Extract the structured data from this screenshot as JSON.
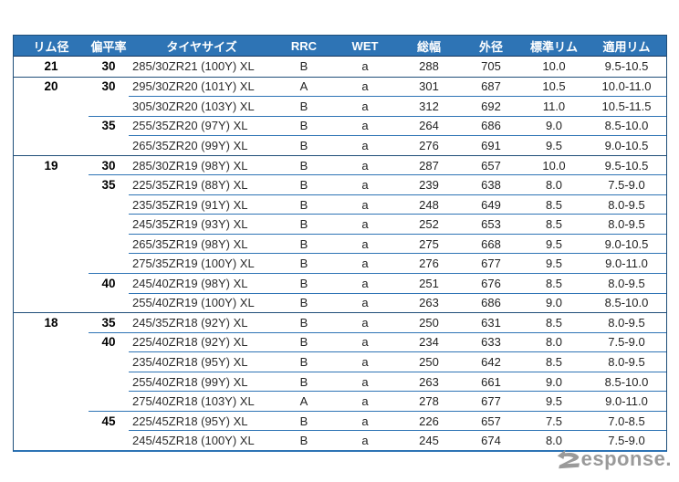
{
  "colors": {
    "header_bg": "#2e74b5",
    "group_line": "#1f4e79",
    "sub_line": "#2e74b5",
    "text": "#222222",
    "watermark_gray": "#9a9a9a"
  },
  "watermark": {
    "label": "Response.",
    "text_tail": "esponse."
  },
  "chart_data": {
    "type": "table",
    "columns": [
      "リム径",
      "偏平率",
      "タイヤサイズ",
      "RRC",
      "WET",
      "総幅",
      "外径",
      "標準リム",
      "適用リム"
    ],
    "rows": [
      {
        "rim": "21",
        "ar": "30",
        "size": "285/30ZR21 (100Y) XL",
        "rrc": "B",
        "wet": "a",
        "width": "288",
        "od": "705",
        "std_rim": "10.0",
        "app_rim": "9.5-10.5",
        "line": "none"
      },
      {
        "rim": "20",
        "ar": "30",
        "size": "295/30ZR20 (101Y) XL",
        "rrc": "A",
        "wet": "a",
        "width": "301",
        "od": "687",
        "std_rim": "10.5",
        "app_rim": "10.0-11.0",
        "line": "group"
      },
      {
        "rim": "",
        "ar": "",
        "size": "305/30ZR20 (103Y) XL",
        "rrc": "B",
        "wet": "a",
        "width": "312",
        "od": "692",
        "std_rim": "11.0",
        "app_rim": "10.5-11.5",
        "line": "size"
      },
      {
        "rim": "",
        "ar": "35",
        "size": "255/35ZR20 (97Y) XL",
        "rrc": "B",
        "wet": "a",
        "width": "264",
        "od": "686",
        "std_rim": "9.0",
        "app_rim": "8.5-10.0",
        "line": "ar"
      },
      {
        "rim": "",
        "ar": "",
        "size": "265/35ZR20 (99Y) XL",
        "rrc": "B",
        "wet": "a",
        "width": "276",
        "od": "691",
        "std_rim": "9.5",
        "app_rim": "9.0-10.5",
        "line": "size"
      },
      {
        "rim": "19",
        "ar": "30",
        "size": "285/30ZR19 (98Y) XL",
        "rrc": "B",
        "wet": "a",
        "width": "287",
        "od": "657",
        "std_rim": "10.0",
        "app_rim": "9.5-10.5",
        "line": "group"
      },
      {
        "rim": "",
        "ar": "35",
        "size": "225/35ZR19 (88Y) XL",
        "rrc": "B",
        "wet": "a",
        "width": "239",
        "od": "638",
        "std_rim": "8.0",
        "app_rim": "7.5-9.0",
        "line": "ar"
      },
      {
        "rim": "",
        "ar": "",
        "size": "235/35ZR19 (91Y) XL",
        "rrc": "B",
        "wet": "a",
        "width": "248",
        "od": "649",
        "std_rim": "8.5",
        "app_rim": "8.0-9.5",
        "line": "size"
      },
      {
        "rim": "",
        "ar": "",
        "size": "245/35ZR19 (93Y) XL",
        "rrc": "B",
        "wet": "a",
        "width": "252",
        "od": "653",
        "std_rim": "8.5",
        "app_rim": "8.0-9.5",
        "line": "size"
      },
      {
        "rim": "",
        "ar": "",
        "size": "265/35ZR19 (98Y) XL",
        "rrc": "B",
        "wet": "a",
        "width": "275",
        "od": "668",
        "std_rim": "9.5",
        "app_rim": "9.0-10.5",
        "line": "size"
      },
      {
        "rim": "",
        "ar": "",
        "size": "275/35ZR19 (100Y) XL",
        "rrc": "B",
        "wet": "a",
        "width": "276",
        "od": "677",
        "std_rim": "9.5",
        "app_rim": "9.0-11.0",
        "line": "size"
      },
      {
        "rim": "",
        "ar": "40",
        "size": "245/40ZR19 (98Y) XL",
        "rrc": "B",
        "wet": "a",
        "width": "251",
        "od": "676",
        "std_rim": "8.5",
        "app_rim": "8.0-9.5",
        "line": "ar"
      },
      {
        "rim": "",
        "ar": "",
        "size": "255/40ZR19 (100Y) XL",
        "rrc": "B",
        "wet": "a",
        "width": "263",
        "od": "686",
        "std_rim": "9.0",
        "app_rim": "8.5-10.0",
        "line": "size"
      },
      {
        "rim": "18",
        "ar": "35",
        "size": "245/35ZR18 (92Y) XL",
        "rrc": "B",
        "wet": "a",
        "width": "250",
        "od": "631",
        "std_rim": "8.5",
        "app_rim": "8.0-9.5",
        "line": "group"
      },
      {
        "rim": "",
        "ar": "40",
        "size": "225/40ZR18 (92Y) XL",
        "rrc": "B",
        "wet": "a",
        "width": "234",
        "od": "633",
        "std_rim": "8.0",
        "app_rim": "7.5-9.0",
        "line": "ar"
      },
      {
        "rim": "",
        "ar": "",
        "size": "235/40ZR18 (95Y) XL",
        "rrc": "B",
        "wet": "a",
        "width": "250",
        "od": "642",
        "std_rim": "8.5",
        "app_rim": "8.0-9.5",
        "line": "size"
      },
      {
        "rim": "",
        "ar": "",
        "size": "255/40ZR18 (99Y) XL",
        "rrc": "B",
        "wet": "a",
        "width": "263",
        "od": "661",
        "std_rim": "9.0",
        "app_rim": "8.5-10.0",
        "line": "size"
      },
      {
        "rim": "",
        "ar": "",
        "size": "275/40ZR18 (103Y) XL",
        "rrc": "A",
        "wet": "a",
        "width": "278",
        "od": "677",
        "std_rim": "9.5",
        "app_rim": "9.0-11.0",
        "line": "size"
      },
      {
        "rim": "",
        "ar": "45",
        "size": "225/45ZR18 (95Y) XL",
        "rrc": "B",
        "wet": "a",
        "width": "226",
        "od": "657",
        "std_rim": "7.5",
        "app_rim": "7.0-8.5",
        "line": "ar"
      },
      {
        "rim": "",
        "ar": "",
        "size": "245/45ZR18 (100Y) XL",
        "rrc": "B",
        "wet": "a",
        "width": "245",
        "od": "674",
        "std_rim": "8.0",
        "app_rim": "7.5-9.0",
        "line": "size"
      }
    ]
  }
}
